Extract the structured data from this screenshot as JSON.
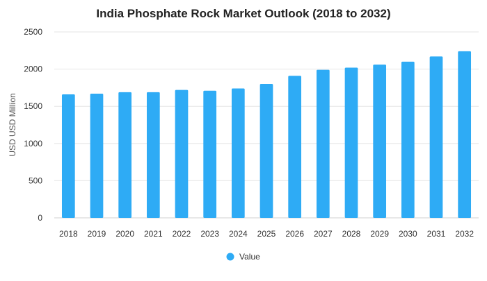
{
  "chart_data": {
    "type": "bar",
    "title": "India Phosphate Rock Market Outlook (2018 to 2032)",
    "xlabel": "",
    "ylabel": "USD USD Million",
    "categories": [
      "2018",
      "2019",
      "2020",
      "2021",
      "2022",
      "2023",
      "2024",
      "2025",
      "2026",
      "2027",
      "2028",
      "2029",
      "2030",
      "2031",
      "2032"
    ],
    "series": [
      {
        "name": "Value",
        "values": [
          1660,
          1670,
          1690,
          1690,
          1720,
          1710,
          1740,
          1800,
          1910,
          1990,
          2020,
          2060,
          2100,
          2170,
          2240
        ]
      }
    ],
    "ylim": [
      0,
      2500
    ],
    "yticks": [
      0,
      500,
      1000,
      1500,
      2000,
      2500
    ],
    "grid": true,
    "legend": "bottom-center",
    "colors": {
      "bar": "#2eabf5"
    }
  }
}
